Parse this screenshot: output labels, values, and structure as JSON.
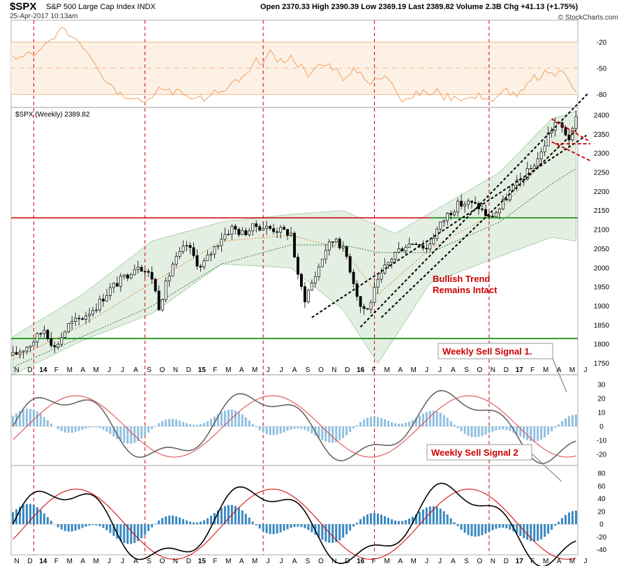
{
  "header": {
    "symbol": "$SPX",
    "name": "S&P 500 Large Cap Index INDX",
    "date": "25-Apr-2017 10:13am",
    "quote": "Open 2370.33  High 2390.39  Low 2369.19  Last 2389.82  Volume 2.3B  Chg +41.13 (+1.75%)",
    "source": "© StockCharts.com"
  },
  "chart_data": [
    {
      "type": "line",
      "panel": "rsi",
      "y_ticks": [
        -20,
        -50,
        -80
      ],
      "reference_lines": [
        -20,
        -50,
        -80
      ],
      "ylim": [
        -95,
        5
      ]
    },
    {
      "type": "candlestick",
      "panel": "price",
      "label": "$SPX (Weekly) 2389.82",
      "ylim": [
        1720,
        2420
      ],
      "y_ticks": [
        1750,
        1800,
        1850,
        1900,
        1950,
        2000,
        2050,
        2100,
        2150,
        2200,
        2250,
        2300,
        2350,
        2400
      ],
      "horizontal_lines": [
        {
          "value": 2131,
          "color": "#cc0000"
        },
        {
          "value": 2131,
          "color": "#008800"
        },
        {
          "value": 1815,
          "color": "#008800"
        }
      ],
      "annotation": "Bullish Trend\nRemains Intact",
      "approx_close_path": [
        [
          0,
          1770
        ],
        [
          5,
          1800
        ],
        [
          9,
          1840
        ],
        [
          12,
          1790
        ],
        [
          16,
          1850
        ],
        [
          20,
          1870
        ],
        [
          24,
          1900
        ],
        [
          28,
          1945
        ],
        [
          32,
          1975
        ],
        [
          36,
          2010
        ],
        [
          40,
          1975
        ],
        [
          42,
          1900
        ],
        [
          46,
          2010
        ],
        [
          50,
          2060
        ],
        [
          54,
          2000
        ],
        [
          57,
          2040
        ],
        [
          60,
          2080
        ],
        [
          63,
          2105
        ],
        [
          66,
          2090
        ],
        [
          70,
          2110
        ],
        [
          73,
          2105
        ],
        [
          76,
          2100
        ],
        [
          80,
          2090
        ],
        [
          82,
          1975
        ],
        [
          84,
          1920
        ],
        [
          87,
          1980
        ],
        [
          90,
          2050
        ],
        [
          93,
          2080
        ],
        [
          96,
          2030
        ],
        [
          100,
          1900
        ],
        [
          102,
          1890
        ],
        [
          104,
          1940
        ],
        [
          107,
          2000
        ],
        [
          110,
          2040
        ],
        [
          113,
          2060
        ],
        [
          116,
          2070
        ],
        [
          119,
          2050
        ],
        [
          122,
          2100
        ],
        [
          125,
          2140
        ],
        [
          128,
          2165
        ],
        [
          131,
          2170
        ],
        [
          134,
          2160
        ],
        [
          137,
          2130
        ],
        [
          140,
          2155
        ],
        [
          143,
          2200
        ],
        [
          146,
          2230
        ],
        [
          149,
          2260
        ],
        [
          152,
          2300
        ],
        [
          154,
          2350
        ],
        [
          156,
          2380
        ],
        [
          158,
          2365
        ],
        [
          160,
          2340
        ],
        [
          161,
          2355
        ],
        [
          162,
          2390
        ]
      ],
      "bollinger": {
        "upper": [
          [
            0,
            1820
          ],
          [
            20,
            1930
          ],
          [
            40,
            2070
          ],
          [
            60,
            2120
          ],
          [
            80,
            2140
          ],
          [
            95,
            2150
          ],
          [
            110,
            2090
          ],
          [
            125,
            2170
          ],
          [
            140,
            2250
          ],
          [
            155,
            2390
          ],
          [
            162,
            2410
          ]
        ],
        "lower": [
          [
            0,
            1720
          ],
          [
            20,
            1810
          ],
          [
            40,
            1880
          ],
          [
            60,
            2010
          ],
          [
            80,
            2000
          ],
          [
            95,
            1890
          ],
          [
            105,
            1750
          ],
          [
            120,
            1960
          ],
          [
            140,
            2030
          ],
          [
            155,
            2080
          ],
          [
            162,
            2070
          ]
        ]
      },
      "ma_fast": [
        [
          0,
          1760
        ],
        [
          20,
          1850
        ],
        [
          40,
          1960
        ],
        [
          60,
          2070
        ],
        [
          80,
          2085
        ],
        [
          95,
          2050
        ],
        [
          105,
          1930
        ],
        [
          120,
          2050
        ],
        [
          140,
          2150
        ],
        [
          155,
          2300
        ],
        [
          162,
          2360
        ]
      ],
      "ma_slow": [
        [
          0,
          1740
        ],
        [
          20,
          1820
        ],
        [
          40,
          1900
        ],
        [
          60,
          2010
        ],
        [
          80,
          2060
        ],
        [
          95,
          2060
        ],
        [
          105,
          2040
        ],
        [
          120,
          2040
        ],
        [
          140,
          2120
        ],
        [
          155,
          2220
        ],
        [
          162,
          2260
        ]
      ]
    },
    {
      "type": "line",
      "panel": "macd1",
      "label": "Weekly Sell Signal 1.",
      "y_ticks": [
        30,
        20,
        10,
        0,
        -10,
        -20
      ],
      "ylim": [
        -28,
        37
      ]
    },
    {
      "type": "line",
      "panel": "macd2",
      "label": "Weekly Sell Signal 2",
      "y_ticks": [
        80,
        60,
        40,
        20,
        0,
        -20,
        -40
      ],
      "ylim": [
        -48,
        92
      ]
    }
  ],
  "x_axis": {
    "labels": [
      "N",
      "D",
      "14",
      "F",
      "M",
      "A",
      "M",
      "J",
      "J",
      "A",
      "S",
      "O",
      "N",
      "D",
      "15",
      "F",
      "M",
      "A",
      "M",
      "J",
      "J",
      "A",
      "S",
      "O",
      "N",
      "D",
      "16",
      "F",
      "M",
      "A",
      "M",
      "J",
      "J",
      "A",
      "S",
      "O",
      "N",
      "D",
      "17",
      "F",
      "M",
      "A",
      "M",
      "J"
    ],
    "year_labels": [
      "14",
      "15",
      "16",
      "17"
    ]
  },
  "colors": {
    "band_fill": "#e4efe4",
    "band_line": "#9cc99c",
    "candle": "#000000",
    "rsi_line": "#f0a060",
    "rsi_ref": "#f0a060",
    "red_line": "#cc0000",
    "green_line": "#008800",
    "ma_fast": "#e08a30",
    "ma_slow": "#2a7a2a",
    "macd1_line": "#666666",
    "macd1_signal": "#e04040",
    "macd1_hist": "#90c0e0",
    "macd2_line": "#000000",
    "macd2_signal": "#d00000",
    "macd2_hist": "#3888c0",
    "annotation": "#cc0000",
    "vline": "#cc0000"
  }
}
